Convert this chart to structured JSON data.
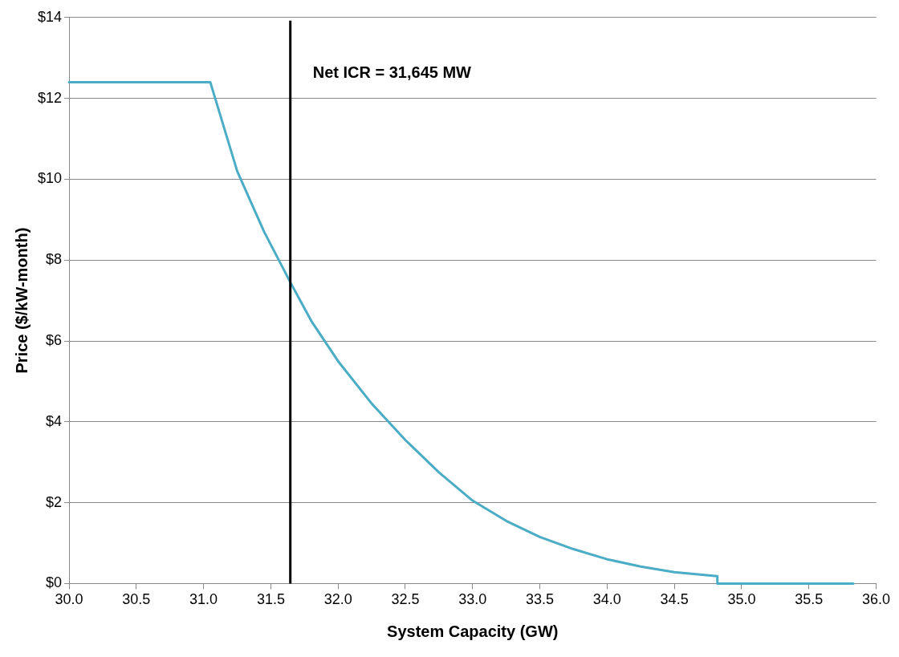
{
  "chart_data": {
    "type": "line",
    "xlabel": "System Capacity (GW)",
    "ylabel": "Price ($/kW-month)",
    "series": [
      {
        "color": "#4bacc6",
        "x": [
          30.0,
          31.05,
          31.25,
          31.45,
          31.645,
          31.8,
          32.0,
          32.25,
          32.5,
          32.75,
          33.0,
          33.25,
          33.5,
          33.75,
          34.0,
          34.25,
          34.5,
          34.82,
          34.82,
          35.83
        ],
        "values": [
          12.4,
          12.4,
          10.2,
          8.7,
          7.45,
          6.5,
          5.5,
          4.45,
          3.55,
          2.75,
          2.05,
          1.55,
          1.15,
          0.85,
          0.6,
          0.42,
          0.28,
          0.18,
          0,
          0
        ]
      }
    ],
    "xlim": [
      30,
      36
    ],
    "xticks": [
      {
        "value": 30,
        "label": "30.0"
      },
      {
        "value": 30.5,
        "label": "30.5"
      },
      {
        "value": 31,
        "label": "31.0"
      },
      {
        "value": 31.5,
        "label": "31.5"
      },
      {
        "value": 32,
        "label": "32.0"
      },
      {
        "value": 32.5,
        "label": "32.5"
      },
      {
        "value": 33,
        "label": "33.0"
      },
      {
        "value": 33.5,
        "label": "33.5"
      },
      {
        "value": 34,
        "label": "34.0"
      },
      {
        "value": 34.5,
        "label": "34.5"
      },
      {
        "value": 35,
        "label": "35.0"
      },
      {
        "value": 35.5,
        "label": "35.5"
      },
      {
        "value": 36,
        "label": "36.0"
      }
    ],
    "ylim": [
      0,
      14
    ],
    "yticks": [
      {
        "value": 0,
        "label": "$0"
      },
      {
        "value": 2,
        "label": "$2"
      },
      {
        "value": 4,
        "label": "$4"
      },
      {
        "value": 6,
        "label": "$6"
      },
      {
        "value": 8,
        "label": "$8"
      },
      {
        "value": 10,
        "label": "$10"
      },
      {
        "value": 12,
        "label": "$12"
      },
      {
        "value": 14,
        "label": "$14"
      }
    ],
    "ref_lines": [
      {
        "axis": "x",
        "value": 31.645,
        "label": "Net ICR = 31,645 MW",
        "color": "#000000"
      }
    ],
    "grid": "y",
    "legend": false,
    "marker": "none",
    "line_style": "solid"
  }
}
